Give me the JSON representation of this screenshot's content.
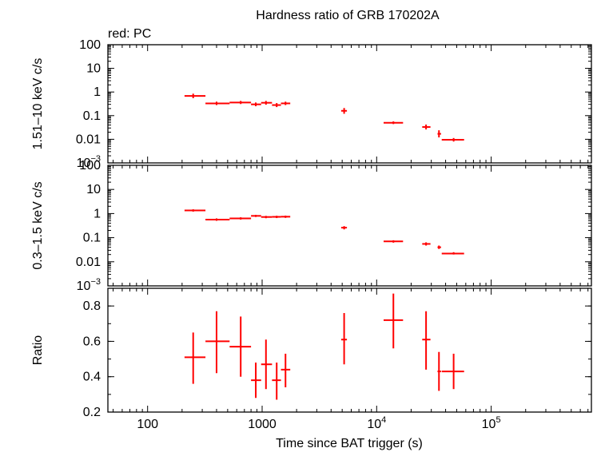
{
  "chart_data": {
    "type": "scatter",
    "title": "Hardness ratio of GRB 170202A",
    "subtitle": "red: PC",
    "xlabel": "Time since BAT trigger (s)",
    "xscale": "log",
    "xlim": [
      45,
      750000
    ],
    "x_ticks": [
      {
        "value": 100,
        "label": "100"
      },
      {
        "value": 1000,
        "label": "1000"
      },
      {
        "value": 10000,
        "label": "10",
        "exp": "4"
      },
      {
        "value": 100000,
        "label": "10",
        "exp": "5"
      }
    ],
    "color": "#ff0000",
    "panels": [
      {
        "name": "hard",
        "ylabel": "1.51–10 keV c/s",
        "yscale": "log",
        "ylim": [
          0.001,
          100
        ],
        "y_ticks": [
          {
            "value": 100,
            "label": "100"
          },
          {
            "value": 10,
            "label": "10"
          },
          {
            "value": 1,
            "label": "1"
          },
          {
            "value": 0.1,
            "label": "0.1"
          },
          {
            "value": 0.01,
            "label": "0.01"
          },
          {
            "value": 0.001,
            "label": "10",
            "exp": "−3"
          }
        ],
        "points": [
          {
            "x": 250,
            "xlo": 210,
            "xhi": 320,
            "y": 0.68,
            "ylo": 0.55,
            "yhi": 0.85
          },
          {
            "x": 400,
            "xlo": 320,
            "xhi": 520,
            "y": 0.33,
            "ylo": 0.28,
            "yhi": 0.39
          },
          {
            "x": 650,
            "xlo": 520,
            "xhi": 800,
            "y": 0.36,
            "ylo": 0.31,
            "yhi": 0.42
          },
          {
            "x": 880,
            "xlo": 800,
            "xhi": 980,
            "y": 0.3,
            "ylo": 0.25,
            "yhi": 0.36
          },
          {
            "x": 1080,
            "xlo": 980,
            "xhi": 1220,
            "y": 0.35,
            "ylo": 0.29,
            "yhi": 0.42
          },
          {
            "x": 1340,
            "xlo": 1220,
            "xhi": 1460,
            "y": 0.28,
            "ylo": 0.23,
            "yhi": 0.34
          },
          {
            "x": 1600,
            "xlo": 1460,
            "xhi": 1760,
            "y": 0.33,
            "ylo": 0.28,
            "yhi": 0.39
          },
          {
            "x": 5200,
            "xlo": 4900,
            "xhi": 5500,
            "y": 0.16,
            "ylo": 0.12,
            "yhi": 0.21
          },
          {
            "x": 14000,
            "xlo": 11500,
            "xhi": 17000,
            "y": 0.05,
            "ylo": 0.044,
            "yhi": 0.057
          },
          {
            "x": 27000,
            "xlo": 25000,
            "xhi": 29500,
            "y": 0.033,
            "ylo": 0.026,
            "yhi": 0.042
          },
          {
            "x": 35000,
            "xlo": 34000,
            "xhi": 36500,
            "y": 0.017,
            "ylo": 0.012,
            "yhi": 0.024
          },
          {
            "x": 47000,
            "xlo": 37000,
            "xhi": 58000,
            "y": 0.0095,
            "ylo": 0.008,
            "yhi": 0.0113
          }
        ]
      },
      {
        "name": "soft",
        "ylabel": "0.3–1.5 keV c/s",
        "yscale": "log",
        "ylim": [
          0.001,
          100
        ],
        "y_ticks": [
          {
            "value": 100,
            "label": "100"
          },
          {
            "value": 10,
            "label": "10"
          },
          {
            "value": 1,
            "label": "1"
          },
          {
            "value": 0.1,
            "label": "0.1"
          },
          {
            "value": 0.01,
            "label": "0.01"
          },
          {
            "value": 0.001,
            "label": "10",
            "exp": "−3"
          }
        ],
        "points": [
          {
            "x": 250,
            "xlo": 210,
            "xhi": 320,
            "y": 1.35,
            "ylo": 1.2,
            "yhi": 1.5
          },
          {
            "x": 400,
            "xlo": 320,
            "xhi": 520,
            "y": 0.56,
            "ylo": 0.5,
            "yhi": 0.63
          },
          {
            "x": 650,
            "xlo": 520,
            "xhi": 800,
            "y": 0.63,
            "ylo": 0.56,
            "yhi": 0.7
          },
          {
            "x": 880,
            "xlo": 800,
            "xhi": 980,
            "y": 0.8,
            "ylo": 0.72,
            "yhi": 0.88
          },
          {
            "x": 1080,
            "xlo": 980,
            "xhi": 1220,
            "y": 0.72,
            "ylo": 0.64,
            "yhi": 0.8
          },
          {
            "x": 1340,
            "xlo": 1220,
            "xhi": 1460,
            "y": 0.73,
            "ylo": 0.65,
            "yhi": 0.81
          },
          {
            "x": 1600,
            "xlo": 1460,
            "xhi": 1760,
            "y": 0.74,
            "ylo": 0.66,
            "yhi": 0.82
          },
          {
            "x": 5200,
            "xlo": 4900,
            "xhi": 5500,
            "y": 0.26,
            "ylo": 0.22,
            "yhi": 0.3
          },
          {
            "x": 14000,
            "xlo": 11500,
            "xhi": 17000,
            "y": 0.07,
            "ylo": 0.062,
            "yhi": 0.078
          },
          {
            "x": 27000,
            "xlo": 25000,
            "xhi": 29500,
            "y": 0.055,
            "ylo": 0.047,
            "yhi": 0.064
          },
          {
            "x": 35000,
            "xlo": 34000,
            "xhi": 36500,
            "y": 0.04,
            "ylo": 0.034,
            "yhi": 0.047
          },
          {
            "x": 47000,
            "xlo": 37000,
            "xhi": 58000,
            "y": 0.022,
            "ylo": 0.02,
            "yhi": 0.025
          }
        ]
      },
      {
        "name": "ratio",
        "ylabel": "Ratio",
        "yscale": "linear",
        "ylim": [
          0.2,
          0.9
        ],
        "y_ticks": [
          {
            "value": 0.2,
            "label": "0.2"
          },
          {
            "value": 0.4,
            "label": "0.4"
          },
          {
            "value": 0.6,
            "label": "0.6"
          },
          {
            "value": 0.8,
            "label": "0.8"
          }
        ],
        "points": [
          {
            "x": 250,
            "xlo": 210,
            "xhi": 320,
            "y": 0.51,
            "ylo": 0.36,
            "yhi": 0.65
          },
          {
            "x": 400,
            "xlo": 320,
            "xhi": 520,
            "y": 0.6,
            "ylo": 0.42,
            "yhi": 0.77
          },
          {
            "x": 650,
            "xlo": 520,
            "xhi": 800,
            "y": 0.57,
            "ylo": 0.4,
            "yhi": 0.74
          },
          {
            "x": 880,
            "xlo": 800,
            "xhi": 980,
            "y": 0.38,
            "ylo": 0.28,
            "yhi": 0.48
          },
          {
            "x": 1080,
            "xlo": 980,
            "xhi": 1220,
            "y": 0.47,
            "ylo": 0.33,
            "yhi": 0.61
          },
          {
            "x": 1340,
            "xlo": 1220,
            "xhi": 1460,
            "y": 0.38,
            "ylo": 0.27,
            "yhi": 0.48
          },
          {
            "x": 1600,
            "xlo": 1460,
            "xhi": 1760,
            "y": 0.44,
            "ylo": 0.34,
            "yhi": 0.53
          },
          {
            "x": 5200,
            "xlo": 4900,
            "xhi": 5500,
            "y": 0.61,
            "ylo": 0.47,
            "yhi": 0.76
          },
          {
            "x": 14000,
            "xlo": 11500,
            "xhi": 17000,
            "y": 0.72,
            "ylo": 0.56,
            "yhi": 0.87
          },
          {
            "x": 27000,
            "xlo": 25000,
            "xhi": 29500,
            "y": 0.61,
            "ylo": 0.44,
            "yhi": 0.77
          },
          {
            "x": 35000,
            "xlo": 34000,
            "xhi": 36500,
            "y": 0.43,
            "ylo": 0.32,
            "yhi": 0.54
          },
          {
            "x": 47000,
            "xlo": 37000,
            "xhi": 58000,
            "y": 0.43,
            "ylo": 0.33,
            "yhi": 0.53
          }
        ]
      }
    ]
  }
}
